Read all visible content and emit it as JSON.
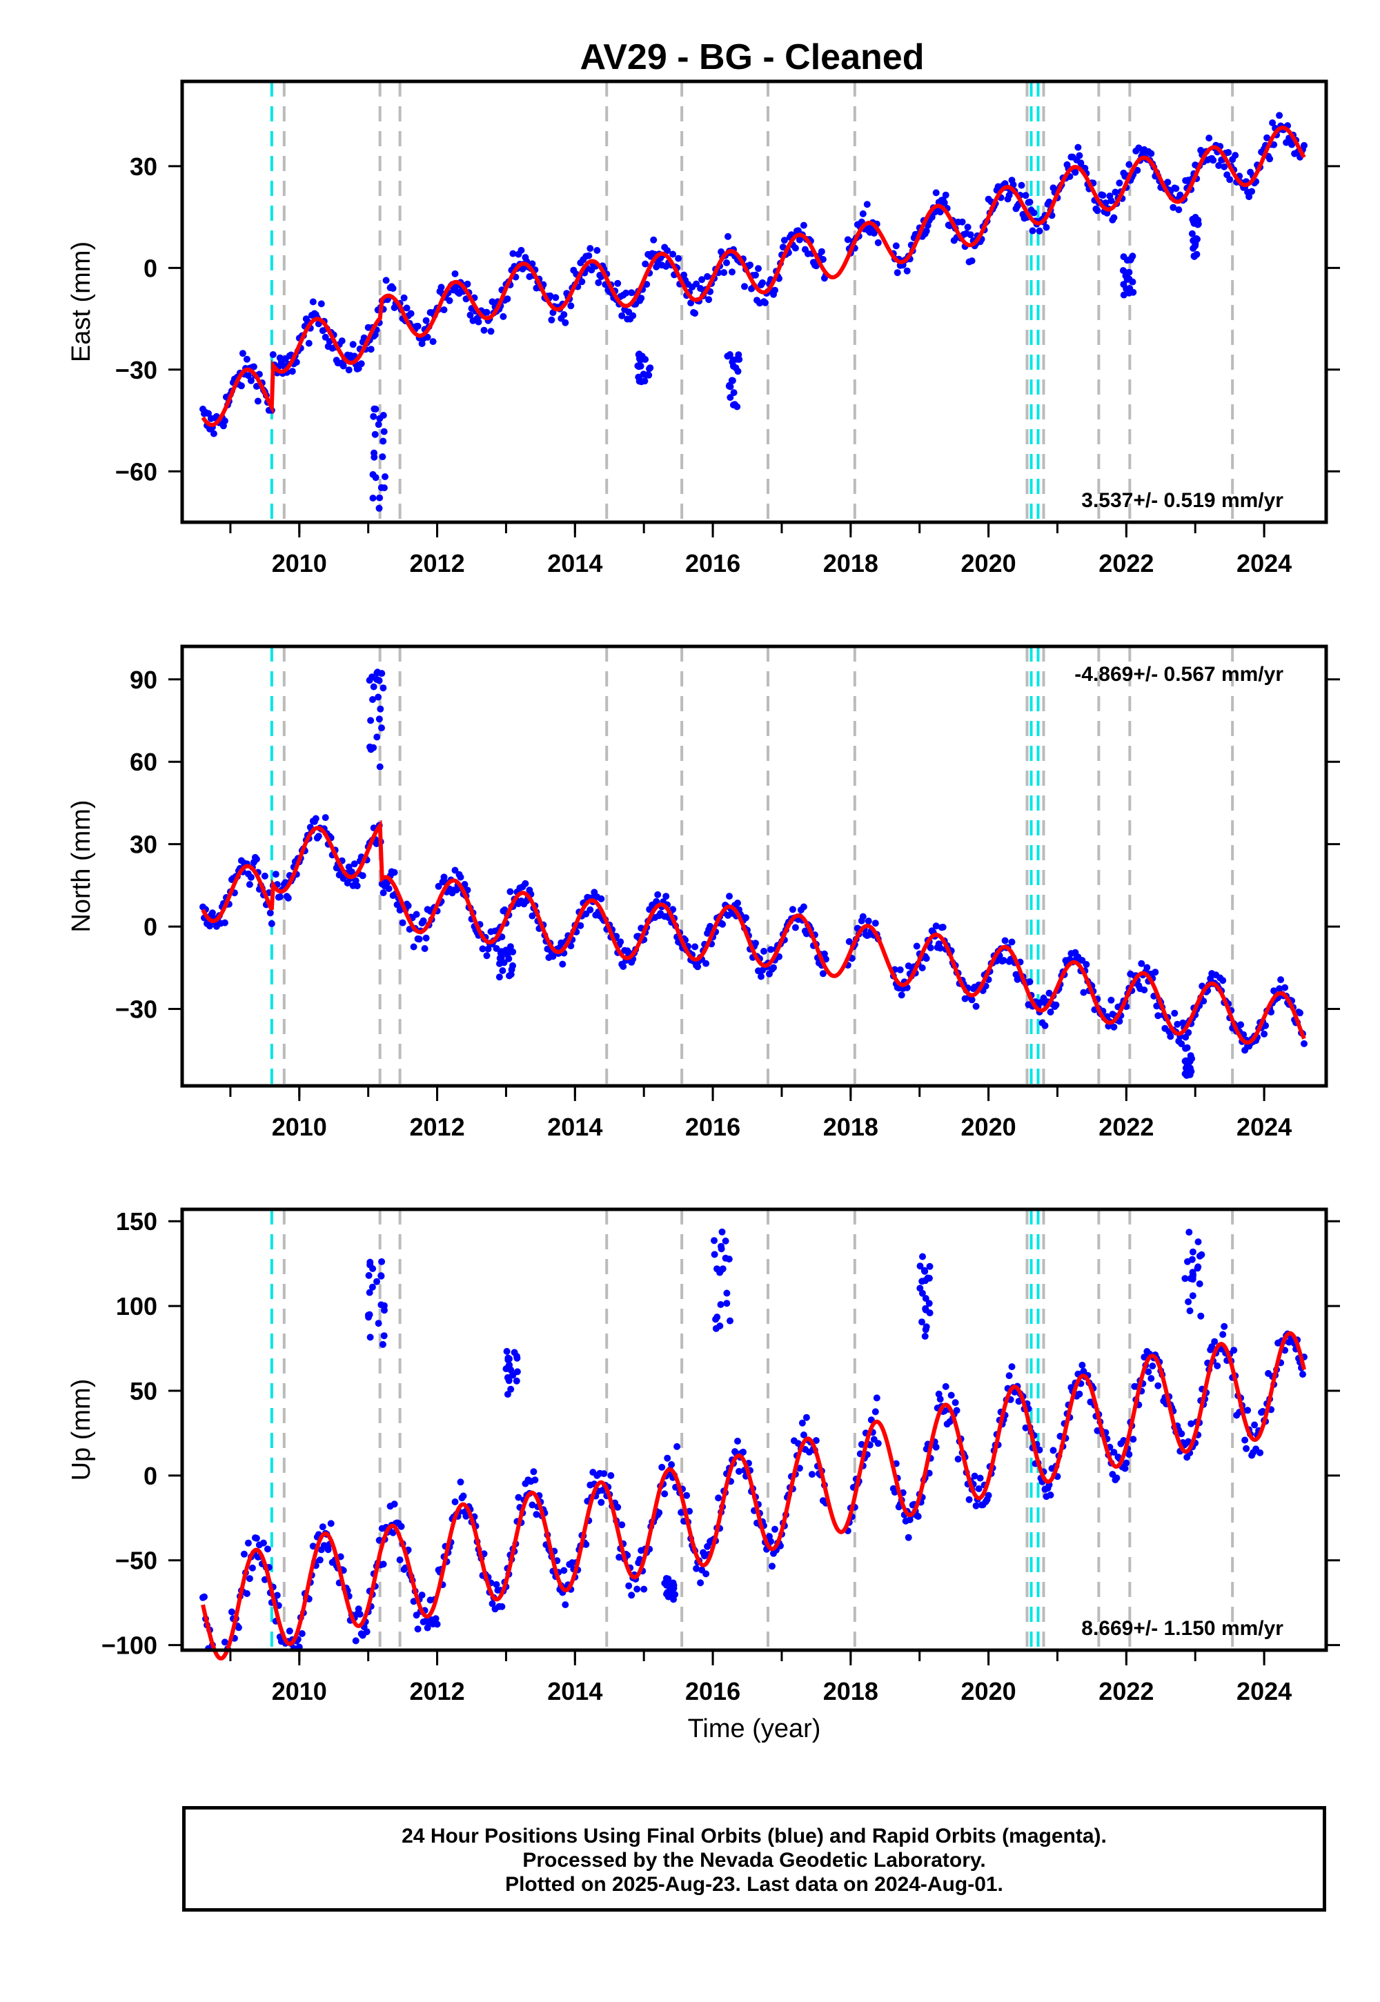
{
  "title": "AV29  - BG - Cleaned",
  "xlabel": "Time (year)",
  "x_ticks": [
    2010,
    2012,
    2014,
    2016,
    2018,
    2020,
    2022,
    2024
  ],
  "xlim": [
    2008.3,
    2024.9
  ],
  "colors": {
    "data": "#0000ff",
    "model": "#ff0000",
    "equipment_change": "#bbbbbb",
    "earthquake": "#00e5e5"
  },
  "cyan_lines": [
    2009.6,
    2020.62,
    2020.72
  ],
  "gray_lines": [
    2009.78,
    2011.17,
    2011.46,
    2014.46,
    2015.55,
    2016.8,
    2018.06,
    2020.56,
    2020.8,
    2021.6,
    2022.05,
    2023.54
  ],
  "footer": {
    "line1": "24 Hour Positions Using Final Orbits (blue) and Rapid Orbits (magenta).",
    "line2": "Processed by the Nevada Geodetic Laboratory.",
    "line3": "Plotted on 2025-Aug-23. Last data on 2024-Aug-01."
  },
  "chart_data": [
    {
      "type": "scatter",
      "ylabel": "East (mm)",
      "ylim": [
        -75,
        55
      ],
      "y_ticks": [
        -60,
        -30,
        0,
        30
      ],
      "rate_label": "3.537+/- 0.519 mm/yr",
      "rate_position": "bottom-right",
      "grid": false,
      "x_range": [
        2008.6,
        2024.58
      ],
      "model": {
        "x": [
          2008.6,
          2009.2,
          2009.6,
          2009.62,
          2010.6,
          2011.17,
          2011.2,
          2011.46,
          2012.0,
          2013.0,
          2014.0,
          2014.46,
          2015.55,
          2016.0,
          2016.8,
          2017.0,
          2018.0,
          2019.0,
          2020.0,
          2021.0,
          2022.0,
          2023.0,
          2024.0,
          2024.58
        ],
        "y": [
          -40,
          -37,
          -37,
          -24,
          -21,
          -21,
          -16,
          -13,
          -13,
          -6,
          -5,
          -5,
          -2,
          -3,
          0,
          2,
          5,
          10,
          15,
          22,
          25,
          27,
          33,
          36
        ],
        "amplitude": 7,
        "phase": 0.0
      },
      "scatter": {
        "noise": 3.5,
        "outliers": [
          {
            "x0": 2011.05,
            "x1": 2011.25,
            "y0": -72,
            "y1": -40
          },
          {
            "x0": 2014.9,
            "x1": 2015.1,
            "y0": -35,
            "y1": -25
          },
          {
            "x0": 2016.2,
            "x1": 2016.45,
            "y0": -41,
            "y1": -25
          },
          {
            "x0": 2021.95,
            "x1": 2022.1,
            "y0": -10,
            "y1": 5
          },
          {
            "x0": 2022.95,
            "x1": 2023.05,
            "y0": 3,
            "y1": 15
          }
        ]
      }
    },
    {
      "type": "scatter",
      "ylabel": "North (mm)",
      "ylim": [
        -58,
        102
      ],
      "y_ticks": [
        -30,
        0,
        30,
        60,
        90
      ],
      "rate_label": "-4.869+/- 0.567 mm/yr",
      "rate_position": "top-right",
      "grid": false,
      "x_range": [
        2008.6,
        2024.58
      ],
      "model": {
        "x": [
          2008.6,
          2009.6,
          2009.62,
          2010.6,
          2011.17,
          2011.2,
          2012.0,
          2013.0,
          2014.0,
          2015.0,
          2016.0,
          2017.0,
          2018.0,
          2019.0,
          2020.0,
          2021.0,
          2022.0,
          2023.0,
          2024.0,
          2024.58
        ],
        "y": [
          12,
          12,
          22,
          28,
          28,
          8,
          8,
          3,
          0,
          -2,
          -2,
          -5,
          -9,
          -12,
          -16,
          -22,
          -26,
          -30,
          -33,
          -36
        ],
        "amplitude": 10,
        "phase": 0.0
      },
      "scatter": {
        "noise": 4,
        "outliers": [
          {
            "x0": 2011.0,
            "x1": 2011.22,
            "y0": 55,
            "y1": 98
          },
          {
            "x0": 2012.9,
            "x1": 2013.1,
            "y0": -20,
            "y1": -5
          },
          {
            "x0": 2022.85,
            "x1": 2022.95,
            "y0": -55,
            "y1": -44
          }
        ]
      }
    },
    {
      "type": "scatter",
      "ylabel": "Up (mm)",
      "ylim": [
        -103,
        157
      ],
      "y_ticks": [
        -100,
        -50,
        0,
        50,
        100,
        150
      ],
      "rate_label": "8.669+/- 1.150 mm/yr",
      "rate_position": "bottom-right",
      "grid": false,
      "x_range": [
        2008.6,
        2024.58
      ],
      "model": {
        "x": [
          2008.6,
          2009.6,
          2010.6,
          2011.17,
          2011.46,
          2012.0,
          2013.0,
          2014.0,
          2015.0,
          2016.0,
          2017.0,
          2018.0,
          2019.0,
          2020.0,
          2020.6,
          2021.6,
          2022.0,
          2023.0,
          2024.0,
          2024.58
        ],
        "y": [
          -80,
          -72,
          -62,
          -55,
          -62,
          -50,
          -42,
          -37,
          -29,
          -22,
          -12,
          -2,
          8,
          18,
          25,
          30,
          38,
          45,
          52,
          55
        ],
        "amplitude": 30,
        "phase": 0.12
      },
      "scatter": {
        "noise": 10,
        "outliers": [
          {
            "x0": 2011.0,
            "x1": 2011.25,
            "y0": 70,
            "y1": 135
          },
          {
            "x0": 2013.0,
            "x1": 2013.2,
            "y0": 40,
            "y1": 75
          },
          {
            "x0": 2016.0,
            "x1": 2016.25,
            "y0": 80,
            "y1": 150
          },
          {
            "x0": 2019.0,
            "x1": 2019.15,
            "y0": 80,
            "y1": 130
          },
          {
            "x0": 2022.85,
            "x1": 2023.1,
            "y0": 90,
            "y1": 145
          },
          {
            "x0": 2015.3,
            "x1": 2015.45,
            "y0": -75,
            "y1": -60
          }
        ]
      }
    }
  ]
}
